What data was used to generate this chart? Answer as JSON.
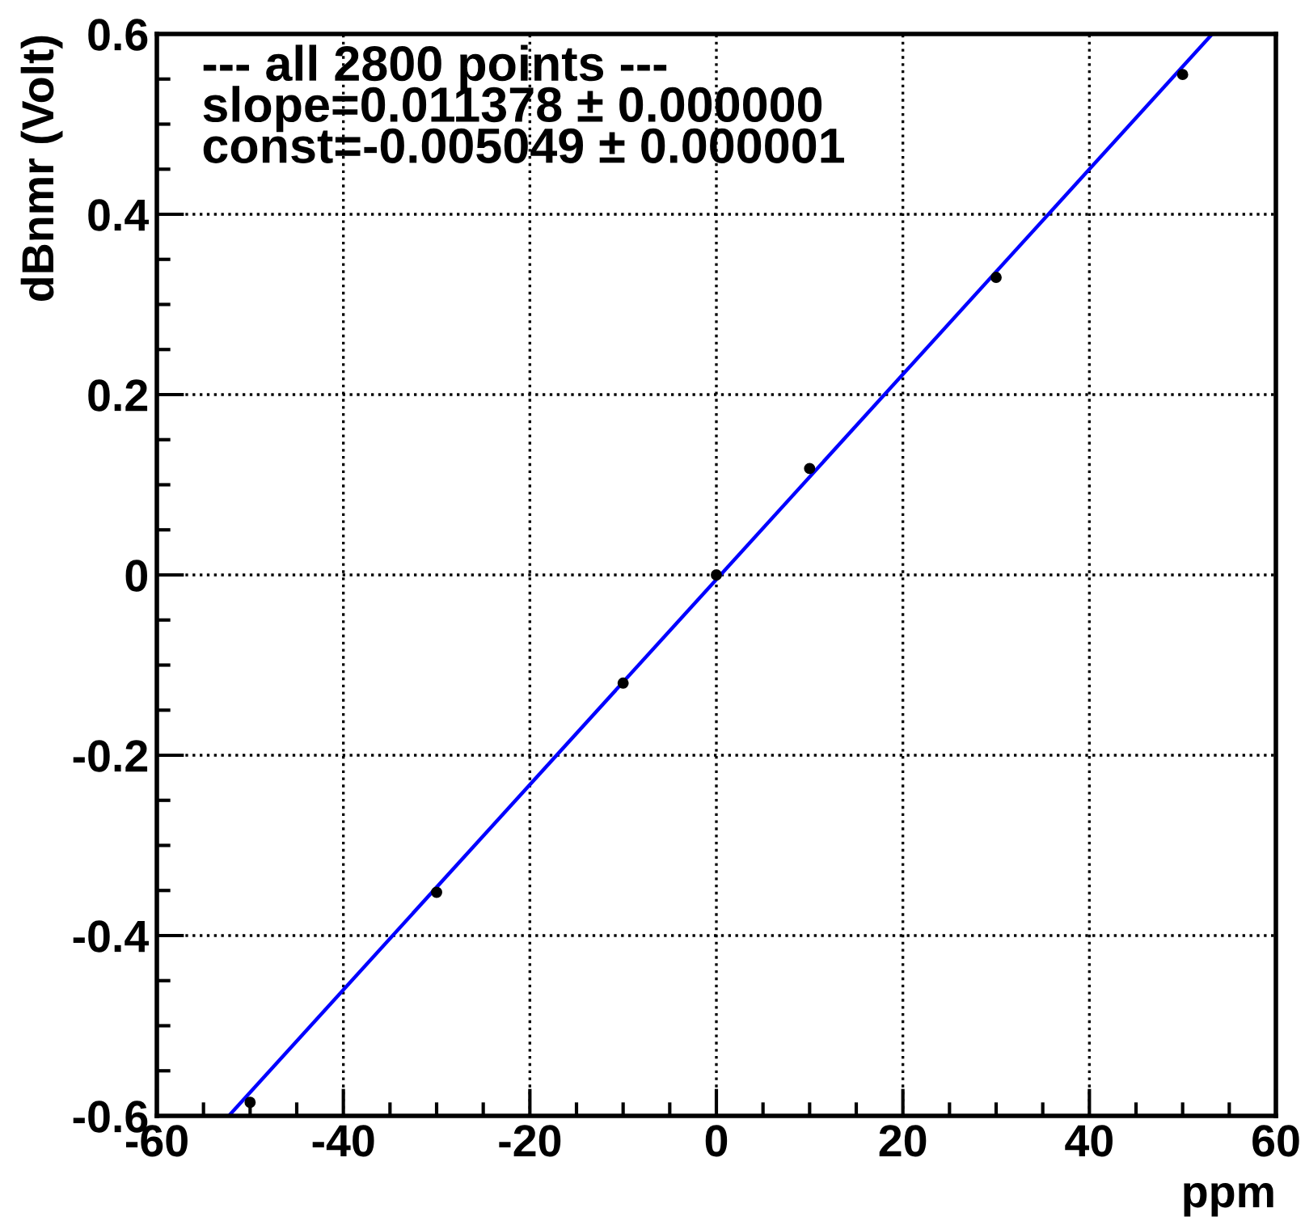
{
  "chart_data": {
    "type": "scatter",
    "xlabel": "ppm",
    "ylabel": "dBnmr (Volt)",
    "annotations": [
      "--- all 2800 points ---",
      "slope=0.011378 ± 0.000000",
      "const=-0.005049 ± 0.000001"
    ],
    "xlim": [
      -60,
      60
    ],
    "xticks": [
      -60,
      -40,
      -20,
      0,
      20,
      40,
      60
    ],
    "ylim": [
      -0.6,
      0.6
    ],
    "yticks": [
      -0.6,
      -0.4,
      -0.2,
      0,
      0.2,
      0.4,
      0.6
    ],
    "grid": true,
    "marker": "circle",
    "series": [
      {
        "color": "#000000",
        "x": [
          -50,
          -30,
          -10,
          0,
          10,
          30,
          50
        ],
        "values": [
          -0.585,
          -0.352,
          -0.12,
          0,
          0.118,
          0.33,
          0.555
        ]
      },
      {
        "type": "line",
        "color": "#0000ff",
        "x": [
          -52.29,
          53.18
        ],
        "values": [
          -0.6,
          0.6
        ],
        "marker": "none",
        "line_style": "solid"
      }
    ]
  }
}
